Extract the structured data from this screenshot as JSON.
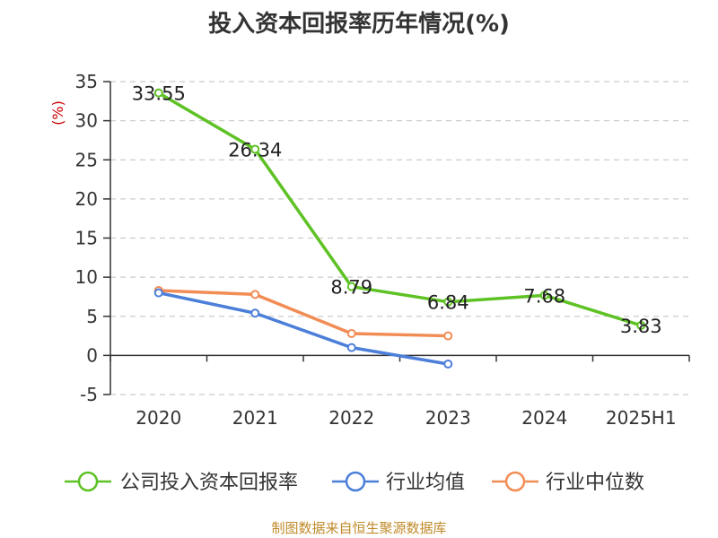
{
  "title": "投入资本回报率历年情况(%)",
  "source_note": "制图数据来自恒生聚源数据库",
  "chart_data": {
    "type": "line",
    "categories": [
      "2020",
      "2021",
      "2022",
      "2023",
      "2024",
      "2025H1"
    ],
    "ylabel": "(%)",
    "ylim": [
      -5,
      35
    ],
    "yticks": [
      -5,
      0,
      5,
      10,
      15,
      20,
      25,
      30,
      35
    ],
    "grid": true,
    "legend_position": "bottom",
    "series": [
      {
        "name": "公司投入资本回报率",
        "color": "#5ec224",
        "values": [
          33.55,
          26.34,
          8.79,
          6.84,
          7.68,
          3.83
        ],
        "labels": [
          "33.55",
          "26.34",
          "8.79",
          "6.84",
          "7.68",
          "3.83"
        ]
      },
      {
        "name": "行业均值",
        "color": "#4c7fd9",
        "values": [
          8.0,
          5.4,
          1.0,
          -1.1,
          null,
          null
        ]
      },
      {
        "name": "行业中位数",
        "color": "#f28c55",
        "values": [
          8.3,
          7.8,
          2.8,
          2.5,
          null,
          null
        ]
      }
    ]
  }
}
